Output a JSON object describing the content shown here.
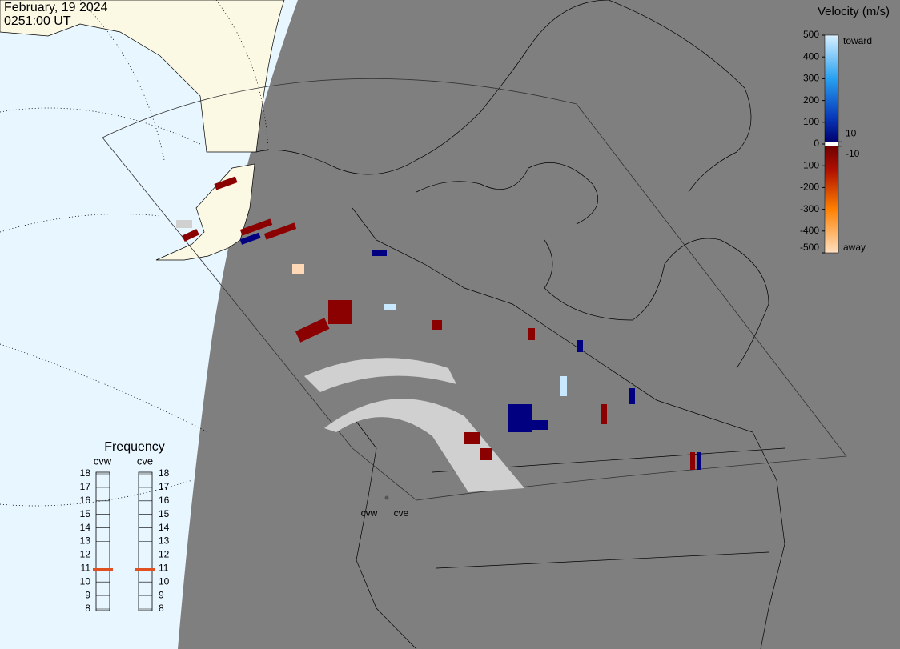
{
  "header": {
    "date": "February, 19 2024",
    "time": "0251:00 UT"
  },
  "colorbar": {
    "title": "Velocity (m/s)",
    "ticks": [
      500,
      400,
      300,
      200,
      100,
      0,
      -100,
      -200,
      -300,
      -400,
      -500
    ],
    "inner_ticks": [
      10,
      -10
    ],
    "toward": "toward",
    "away": "away"
  },
  "frequency": {
    "title": "Frequency",
    "radars": [
      "cvw",
      "cve"
    ],
    "ticks": [
      18,
      17,
      16,
      15,
      14,
      13,
      12,
      11,
      10,
      9,
      8
    ],
    "values": [
      10.9,
      10.9
    ]
  },
  "radar_labels": [
    "cvw",
    "cve"
  ]
}
